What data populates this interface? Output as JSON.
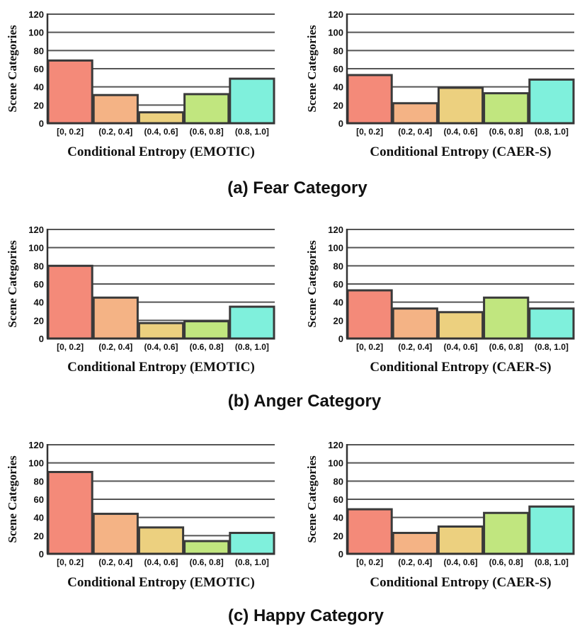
{
  "colors": [
    "#f48a79",
    "#f4b385",
    "#ecd07f",
    "#c1e67f",
    "#7ff0dc"
  ],
  "panel_titles": [
    "(a) Fear Category",
    "(b) Anger Category",
    "(c) Happy Category"
  ],
  "chart_data": [
    {
      "type": "bar",
      "title": "",
      "panel": "(a) Fear Category",
      "dataset": "EMOTIC",
      "categories": [
        "[0, 0.2]",
        "(0.2, 0.4]",
        "(0.4, 0.6]",
        "(0.6, 0.8]",
        "(0.8, 1.0]"
      ],
      "values": [
        69,
        31,
        12,
        32,
        49
      ],
      "xlabel": "Conditional Entropy (EMOTIC)",
      "ylabel": "Scene Categories",
      "ylim": [
        0,
        120
      ],
      "yticks": [
        0,
        20,
        40,
        60,
        80,
        100,
        120
      ],
      "grid": true
    },
    {
      "type": "bar",
      "title": "",
      "panel": "(a) Fear Category",
      "dataset": "CAER-S",
      "categories": [
        "[0, 0.2]",
        "(0.2, 0.4]",
        "(0.4, 0.6]",
        "(0.6, 0.8]",
        "(0.8, 1.0]"
      ],
      "values": [
        53,
        22,
        39,
        33,
        48
      ],
      "xlabel": "Conditional Entropy (CAER-S)",
      "ylabel": "Scene Categories",
      "ylim": [
        0,
        120
      ],
      "yticks": [
        0,
        20,
        40,
        60,
        80,
        100,
        120
      ],
      "grid": true
    },
    {
      "type": "bar",
      "title": "",
      "panel": "(b) Anger Category",
      "dataset": "EMOTIC",
      "categories": [
        "[0, 0.2]",
        "(0.2, 0.4]",
        "(0.4, 0.6]",
        "(0.6, 0.8]",
        "(0.8, 1.0]"
      ],
      "values": [
        80,
        45,
        17,
        19,
        35
      ],
      "xlabel": "Conditional Entropy (EMOTIC)",
      "ylabel": "Scene Categories",
      "ylim": [
        0,
        120
      ],
      "yticks": [
        0,
        20,
        40,
        60,
        80,
        100,
        120
      ],
      "grid": true
    },
    {
      "type": "bar",
      "title": "",
      "panel": "(b) Anger Category",
      "dataset": "CAER-S",
      "categories": [
        "[0, 0.2]",
        "(0.2, 0.4]",
        "(0.4, 0.6]",
        "(0.6, 0.8]",
        "(0.8, 1.0]"
      ],
      "values": [
        53,
        33,
        29,
        45,
        33
      ],
      "xlabel": "Conditional Entropy (CAER-S)",
      "ylabel": "Scene Categories",
      "ylim": [
        0,
        120
      ],
      "yticks": [
        0,
        20,
        40,
        60,
        80,
        100,
        120
      ],
      "grid": true
    },
    {
      "type": "bar",
      "title": "",
      "panel": "(c) Happy Category",
      "dataset": "EMOTIC",
      "categories": [
        "[0, 0.2]",
        "(0.2, 0.4]",
        "(0.4, 0.6]",
        "(0.6, 0.8]",
        "(0.8, 1.0]"
      ],
      "values": [
        90,
        44,
        29,
        14,
        23
      ],
      "xlabel": "Conditional Entropy (EMOTIC)",
      "ylabel": "Scene Categories",
      "ylim": [
        0,
        120
      ],
      "yticks": [
        0,
        20,
        40,
        60,
        80,
        100,
        120
      ],
      "grid": true
    },
    {
      "type": "bar",
      "title": "",
      "panel": "(c) Happy Category",
      "dataset": "CAER-S",
      "categories": [
        "[0, 0.2]",
        "(0.2, 0.4]",
        "(0.4, 0.6]",
        "(0.6, 0.8]",
        "(0.8, 1.0]"
      ],
      "values": [
        49,
        23,
        30,
        45,
        52
      ],
      "xlabel": "Conditional Entropy (CAER-S)",
      "ylabel": "Scene Categories",
      "ylim": [
        0,
        120
      ],
      "yticks": [
        0,
        20,
        40,
        60,
        80,
        100,
        120
      ],
      "grid": true
    }
  ]
}
